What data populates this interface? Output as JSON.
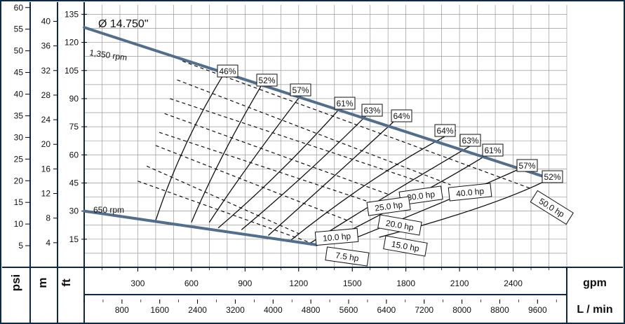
{
  "chart_data": {
    "type": "line",
    "title": "Ø 14.750\"",
    "diameter_label": "Ø 14.750\"",
    "units": {
      "psi": "psi",
      "m": "m",
      "ft": "ft",
      "gpm": "gpm",
      "lpm": "L / min"
    },
    "axes": {
      "ft_ticks": [
        15,
        30,
        45,
        60,
        75,
        90,
        105,
        120,
        135
      ],
      "psi_ticks": [
        5,
        10,
        15,
        20,
        25,
        30,
        35,
        40,
        45,
        50,
        55,
        60
      ],
      "m_ticks": [
        4,
        8,
        12,
        16,
        20,
        24,
        28,
        32,
        36,
        40
      ],
      "gpm_ticks": [
        300,
        600,
        900,
        1200,
        1500,
        1800,
        2100,
        2400
      ],
      "lpm_ticks": [
        800,
        1600,
        2400,
        3200,
        4000,
        4800,
        5600,
        6400,
        7200,
        8000,
        8800,
        9600
      ],
      "xlim_gpm": [
        0,
        2700
      ],
      "ylim_ft": [
        0,
        140
      ],
      "grid": true
    },
    "speed_curves": [
      {
        "name": "1,350 rpm",
        "points": [
          [
            0,
            128
          ],
          [
            2650,
            46
          ]
        ]
      },
      {
        "name": "650 rpm",
        "points": [
          [
            0,
            30
          ],
          [
            1300,
            12
          ]
        ]
      }
    ],
    "efficiency_curves": [
      {
        "label": "46%",
        "points": [
          [
            400,
            25
          ],
          [
            550,
            68
          ],
          [
            800,
            106
          ]
        ]
      },
      {
        "label": "52%",
        "points": [
          [
            600,
            24
          ],
          [
            760,
            60
          ],
          [
            1010,
            100
          ]
        ]
      },
      {
        "label": "57%",
        "points": [
          [
            700,
            24
          ],
          [
            900,
            53
          ],
          [
            1230,
            94
          ]
        ]
      },
      {
        "label": "61%",
        "points": [
          [
            750,
            21
          ],
          [
            1130,
            52
          ],
          [
            1470,
            89
          ]
        ]
      },
      {
        "label": "63%",
        "points": [
          [
            880,
            20
          ],
          [
            1280,
            52
          ],
          [
            1620,
            85
          ]
        ]
      },
      {
        "label": "64%",
        "points": [
          [
            1030,
            17
          ],
          [
            1440,
            52
          ],
          [
            1780,
            82
          ]
        ]
      },
      {
        "label": "64%",
        "points": [
          [
            1150,
            14
          ],
          [
            1620,
            50
          ],
          [
            2080,
            73
          ]
        ]
      },
      {
        "label": "63%",
        "points": [
          [
            1250,
            12
          ],
          [
            1800,
            45
          ],
          [
            2220,
            68
          ]
        ]
      },
      {
        "label": "61%",
        "points": [
          [
            2270,
            61
          ],
          [
            1950,
            42
          ],
          [
            1370,
            14
          ]
        ]
      },
      {
        "label": "57%",
        "points": [
          [
            2470,
            54
          ],
          [
            2150,
            40
          ],
          [
            1500,
            15
          ]
        ]
      },
      {
        "label": "52%",
        "points": [
          [
            2620,
            48
          ],
          [
            2320,
            33
          ],
          [
            1650,
            16
          ]
        ]
      }
    ],
    "power_curves": [
      {
        "label": "7.5 hp",
        "points": [
          [
            300,
            46
          ],
          [
            1300,
            12
          ]
        ]
      },
      {
        "label": "10.0 hp",
        "points": [
          [
            350,
            54
          ],
          [
            1200,
            18
          ]
        ]
      },
      {
        "label": "15.0 hp",
        "points": [
          [
            400,
            65
          ],
          [
            1500,
            24
          ]
        ]
      },
      {
        "label": "20.0 hp",
        "points": [
          [
            420,
            72
          ],
          [
            1750,
            30
          ]
        ]
      },
      {
        "label": "25.0 hp",
        "points": [
          [
            450,
            82
          ],
          [
            1700,
            39
          ]
        ]
      },
      {
        "label": "30.0 hp",
        "points": [
          [
            480,
            90
          ],
          [
            1900,
            45
          ]
        ]
      },
      {
        "label": "40.0 hp",
        "points": [
          [
            520,
            100
          ],
          [
            2050,
            44
          ]
        ]
      },
      {
        "label": "50.0 hp",
        "points": [
          [
            550,
            110
          ],
          [
            2500,
            42
          ]
        ]
      }
    ],
    "efficiency_labels": [
      {
        "text": "46%"
      },
      {
        "text": "52%"
      },
      {
        "text": "57%"
      },
      {
        "text": "61%"
      },
      {
        "text": "63%"
      },
      {
        "text": "64%"
      },
      {
        "text": "64%"
      },
      {
        "text": "63%"
      },
      {
        "text": "61%"
      },
      {
        "text": "57%"
      },
      {
        "text": "52%"
      }
    ],
    "power_labels": [
      {
        "text": "30.0 hp"
      },
      {
        "text": "40.0 hp"
      },
      {
        "text": "25.0 hp"
      },
      {
        "text": "50.0 hp"
      },
      {
        "text": "20.0 hp"
      },
      {
        "text": "10.0 hp"
      },
      {
        "text": "15.0 hp"
      },
      {
        "text": "7.5 hp"
      }
    ],
    "colors": {
      "speed_curve": "#516f8c",
      "frame": "#0b2a4a",
      "grid": "#9a9a9a"
    }
  }
}
